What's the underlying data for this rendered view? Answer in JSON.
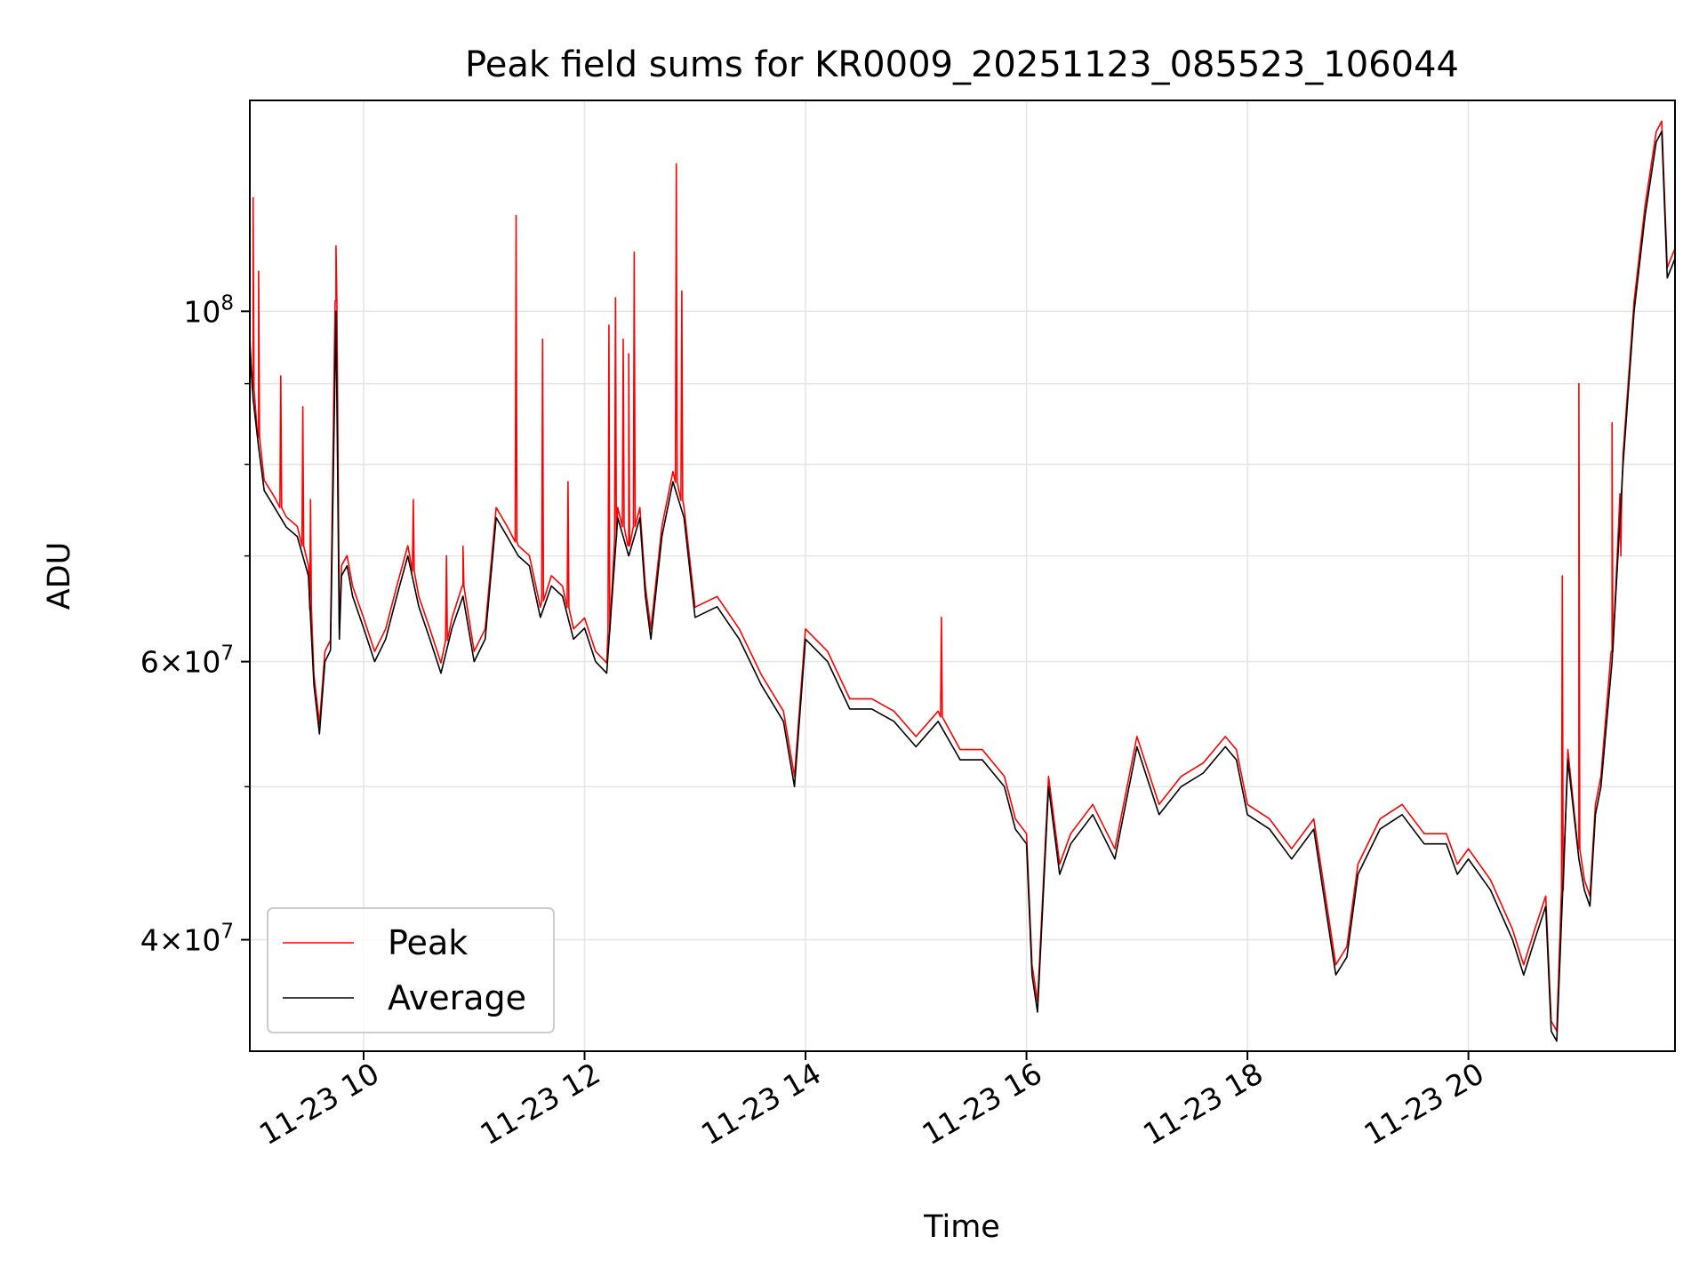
{
  "chart_data": {
    "type": "line",
    "title": "Peak field sums for KR0009_20251123_085523_106044",
    "xlabel": "Time",
    "ylabel": "ADU",
    "x_unit": "hours since 11-23 00:00",
    "xlim": [
      8.97,
      21.87
    ],
    "ylim": [
      34000000,
      136000000
    ],
    "y_scale": "log",
    "grid": true,
    "legend": {
      "placement": "lower-left",
      "entries": [
        "Peak",
        "Average"
      ]
    },
    "x_ticks": [
      {
        "value": 10,
        "label": "11-23 10"
      },
      {
        "value": 12,
        "label": "11-23 12"
      },
      {
        "value": 14,
        "label": "11-23 14"
      },
      {
        "value": 16,
        "label": "11-23 16"
      },
      {
        "value": 18,
        "label": "11-23 18"
      },
      {
        "value": 20,
        "label": "11-23 20"
      }
    ],
    "y_ticks": [
      {
        "value": 100000000,
        "base": "10",
        "exp": "8"
      },
      {
        "value": 60000000,
        "mantissa": "6",
        "base": "10",
        "exp": "7"
      },
      {
        "value": 40000000,
        "mantissa": "4",
        "base": "10",
        "exp": "7"
      }
    ],
    "y_minor_ticks": [
      50000000,
      70000000,
      80000000,
      90000000
    ],
    "colors": {
      "peak": "#ff0000",
      "average": "#000000",
      "grid": "#e6e6e6",
      "axes": "#000000"
    },
    "series": [
      {
        "name": "Average",
        "color": "#000000",
        "x": [
          8.97,
          9.0,
          9.05,
          9.1,
          9.15,
          9.2,
          9.3,
          9.4,
          9.5,
          9.55,
          9.6,
          9.65,
          9.7,
          9.75,
          9.78,
          9.8,
          9.85,
          9.9,
          10.0,
          10.1,
          10.2,
          10.3,
          10.4,
          10.5,
          10.6,
          10.7,
          10.8,
          10.9,
          11.0,
          11.1,
          11.2,
          11.3,
          11.4,
          11.5,
          11.6,
          11.7,
          11.8,
          11.9,
          12.0,
          12.1,
          12.2,
          12.3,
          12.4,
          12.5,
          12.55,
          12.6,
          12.7,
          12.8,
          12.9,
          13.0,
          13.2,
          13.4,
          13.6,
          13.8,
          13.9,
          14.0,
          14.2,
          14.4,
          14.6,
          14.8,
          15.0,
          15.2,
          15.4,
          15.6,
          15.8,
          15.9,
          16.0,
          16.05,
          16.1,
          16.2,
          16.3,
          16.4,
          16.6,
          16.8,
          17.0,
          17.2,
          17.4,
          17.6,
          17.8,
          17.9,
          18.0,
          18.2,
          18.4,
          18.6,
          18.8,
          18.9,
          19.0,
          19.2,
          19.4,
          19.6,
          19.8,
          19.9,
          20.0,
          20.2,
          20.4,
          20.5,
          20.6,
          20.7,
          20.75,
          20.8,
          20.9,
          21.0,
          21.05,
          21.1,
          21.15,
          21.2,
          21.3,
          21.4,
          21.5,
          21.6,
          21.7,
          21.75,
          21.8,
          21.87
        ],
        "values": [
          95000000,
          88000000,
          82000000,
          77000000,
          76000000,
          75000000,
          73000000,
          72000000,
          68000000,
          58000000,
          54000000,
          60000000,
          61000000,
          100000000,
          62000000,
          68000000,
          69000000,
          66000000,
          63000000,
          60000000,
          62000000,
          66000000,
          70000000,
          65000000,
          62000000,
          59000000,
          63000000,
          66000000,
          60000000,
          62000000,
          74000000,
          72000000,
          70000000,
          69000000,
          64000000,
          67000000,
          66000000,
          62000000,
          63000000,
          60000000,
          59000000,
          74000000,
          70000000,
          74000000,
          66000000,
          62000000,
          72000000,
          78000000,
          74000000,
          64000000,
          65000000,
          62000000,
          58000000,
          55000000,
          50000000,
          62000000,
          60000000,
          56000000,
          56000000,
          55000000,
          53000000,
          55000000,
          52000000,
          52000000,
          50000000,
          47000000,
          46000000,
          38000000,
          36000000,
          50000000,
          44000000,
          46000000,
          48000000,
          45000000,
          53000000,
          48000000,
          50000000,
          51000000,
          53000000,
          52000000,
          48000000,
          47000000,
          45000000,
          47000000,
          38000000,
          39000000,
          44000000,
          47000000,
          48000000,
          46000000,
          46000000,
          44000000,
          45000000,
          43000000,
          40000000,
          38000000,
          40000000,
          42000000,
          35000000,
          34500000,
          52000000,
          45000000,
          43000000,
          42000000,
          48000000,
          50000000,
          60000000,
          80000000,
          100000000,
          115000000,
          128000000,
          130000000,
          105000000,
          108000000
        ]
      },
      {
        "name": "Peak",
        "color": "#ff0000",
        "x": [
          9.0,
          9.05,
          9.25,
          9.45,
          9.52,
          9.75,
          10.45,
          10.75,
          10.9,
          11.38,
          11.62,
          11.85,
          12.22,
          12.28,
          12.35,
          12.4,
          12.45,
          12.83,
          12.88,
          15.23,
          20.85,
          21.0,
          21.3,
          21.38
        ],
        "values": [
          118000000,
          106000000,
          91000000,
          87000000,
          76000000,
          110000000,
          76000000,
          70000000,
          71000000,
          115000000,
          96000000,
          78000000,
          98000000,
          102000000,
          96000000,
          94000000,
          109000000,
          124000000,
          103000000,
          64000000,
          68000000,
          90000000,
          85000000,
          70000000
        ]
      }
    ]
  }
}
